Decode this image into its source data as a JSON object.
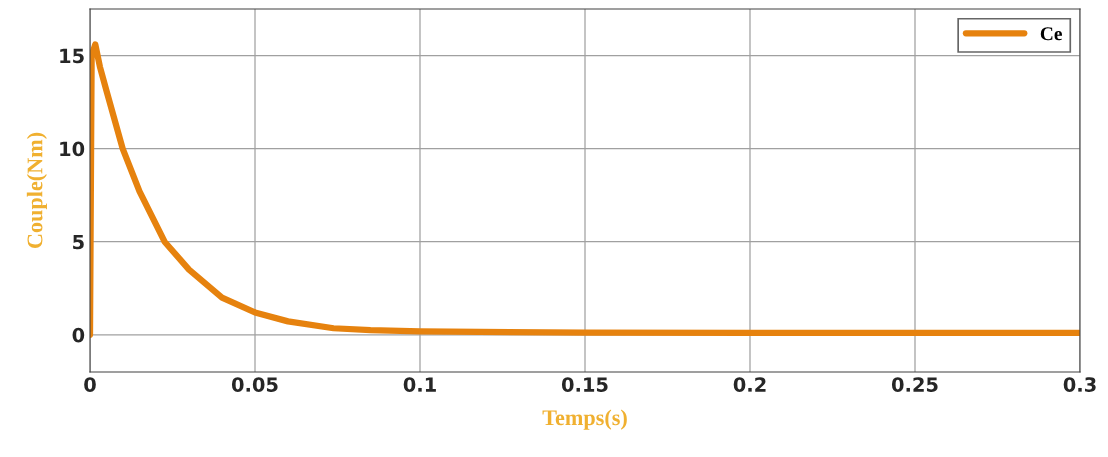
{
  "chart_data": {
    "type": "line",
    "xlabel": "Temps(s)",
    "ylabel": "Couple(Nm)",
    "x": [
      0,
      0.0005,
      0.0016,
      0.003,
      0.005,
      0.0099,
      0.015,
      0.0226,
      0.03,
      0.04,
      0.05,
      0.06,
      0.0738,
      0.085,
      0.1,
      0.15,
      0.2,
      0.25,
      0.3
    ],
    "series": [
      {
        "name": "Ce",
        "color": "#e6820e",
        "values": [
          0,
          15.0,
          15.6,
          14.4,
          13.1,
          10,
          7.7,
          5,
          3.5,
          2.0,
          1.2,
          0.72,
          0.35,
          0.25,
          0.18,
          0.12,
          0.1,
          0.1,
          0.1
        ]
      }
    ],
    "xlim": [
      0,
      0.3
    ],
    "xticks": [
      0,
      0.05,
      0.1,
      0.15,
      0.2,
      0.25,
      0.3
    ],
    "ylim": [
      -2,
      17.5
    ],
    "yticks": [
      0,
      5,
      10,
      15
    ],
    "grid": true,
    "legend": "top right",
    "line_style": "solid",
    "marker": "none"
  }
}
